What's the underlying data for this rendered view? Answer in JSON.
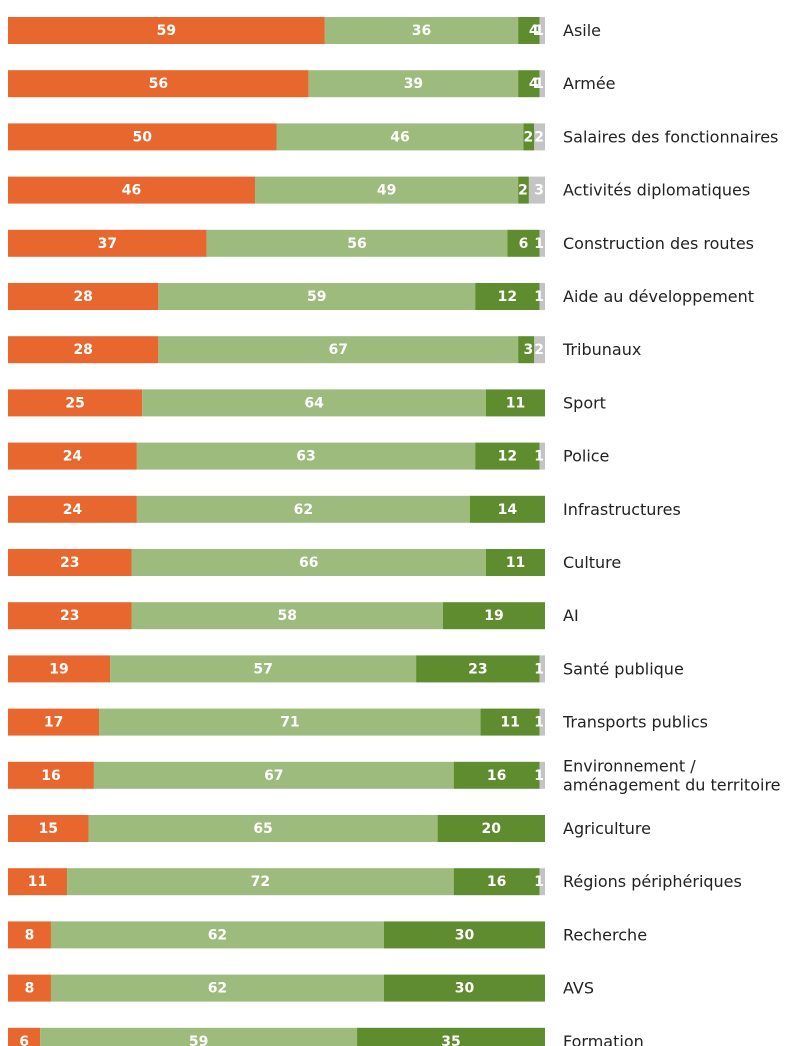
{
  "chart_data": {
    "type": "bar",
    "orientation": "horizontal",
    "stacked": true,
    "categories": [
      "Asile",
      "Armée",
      "Salaires des fonctionnaires",
      "Activités diplomatiques",
      "Construction des routes",
      "Aide au développement",
      "Tribunaux",
      "Sport",
      "Police",
      "Infrastructures",
      "Culture",
      "AI",
      "Santé publique",
      "Transports publics",
      "Environnement / aménagement du territoire",
      "Agriculture",
      "Régions périphériques",
      "Recherche",
      "AVS",
      "Formation"
    ],
    "category_lines": [
      [
        "Asile"
      ],
      [
        "Armée"
      ],
      [
        "Salaires des fonctionnaires"
      ],
      [
        "Activités diplomatiques"
      ],
      [
        "Construction des routes"
      ],
      [
        "Aide au développement"
      ],
      [
        "Tribunaux"
      ],
      [
        "Sport"
      ],
      [
        "Police"
      ],
      [
        "Infrastructures"
      ],
      [
        "Culture"
      ],
      [
        "AI"
      ],
      [
        "Santé publique"
      ],
      [
        "Transports publics"
      ],
      [
        "Environnement /",
        "aménagement du territoire"
      ],
      [
        "Agriculture"
      ],
      [
        "Régions périphériques"
      ],
      [
        "Recherche"
      ],
      [
        "AVS"
      ],
      [
        "Formation"
      ]
    ],
    "series": [
      {
        "color": "#e8672e",
        "values": [
          59,
          56,
          50,
          46,
          37,
          28,
          28,
          25,
          24,
          24,
          23,
          23,
          19,
          17,
          16,
          15,
          11,
          8,
          8,
          6
        ]
      },
      {
        "color": "#9dbb7c",
        "values": [
          36,
          39,
          46,
          49,
          56,
          59,
          67,
          64,
          63,
          62,
          66,
          58,
          57,
          71,
          67,
          65,
          72,
          62,
          62,
          59
        ]
      },
      {
        "color": "#5f8c2e",
        "values": [
          4,
          4,
          2,
          2,
          6,
          12,
          3,
          11,
          12,
          14,
          11,
          19,
          23,
          11,
          16,
          20,
          16,
          30,
          30,
          35
        ]
      },
      {
        "color": "#c4c4c4",
        "values": [
          1,
          1,
          2,
          3,
          1,
          1,
          2,
          0,
          1,
          0,
          0,
          0,
          1,
          1,
          1,
          0,
          1,
          0,
          0,
          0
        ]
      }
    ],
    "xlim": [
      0,
      100
    ],
    "grid": false,
    "legend": "none"
  }
}
